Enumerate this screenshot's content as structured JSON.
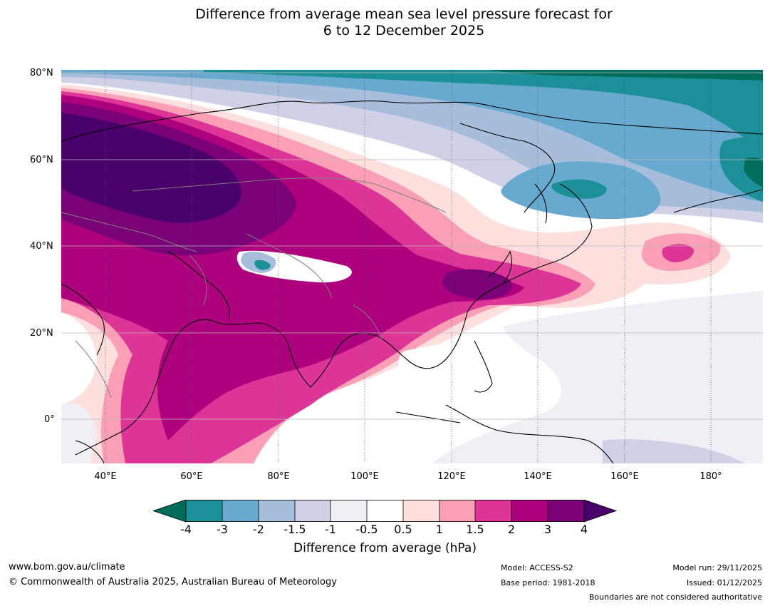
{
  "title_line1": "Difference from average mean sea level pressure forecast for",
  "title_line2": "6 to 12 December 2025",
  "lat_labels": [
    "80°N",
    "60°N",
    "40°N",
    "20°N",
    "0°"
  ],
  "lon_labels": [
    "40°E",
    "60°E",
    "80°E",
    "100°E",
    "120°E",
    "140°E",
    "160°E",
    "180°"
  ],
  "colorbar": {
    "ticks": [
      "-4",
      "-3",
      "-2",
      "-1.5",
      "-1",
      "-0.5",
      "0.5",
      "1",
      "1.5",
      "2",
      "3",
      "4"
    ],
    "colors": [
      "#006c5b",
      "#1b9099",
      "#67a9cf",
      "#a6bddb",
      "#d0d1e6",
      "#f1eef6",
      "#ffffff",
      "#fde0dd",
      "#fa9fb5",
      "#dd3497",
      "#ae017e",
      "#7a0177",
      "#49006a"
    ],
    "label": "Difference from average (hPa)"
  },
  "footer": {
    "url": "www.bom.gov.au/climate",
    "copyright": "© Commonwealth of Australia 2025, Australian Bureau of Meteorology",
    "model": "Model: ACCESS-S2",
    "base_period": "Base period: 1981-2018",
    "model_run": "Model run: 29/11/2025",
    "issued": "Issued: 01/12/2025",
    "boundaries_note": "Boundaries are not considered authoritative"
  }
}
